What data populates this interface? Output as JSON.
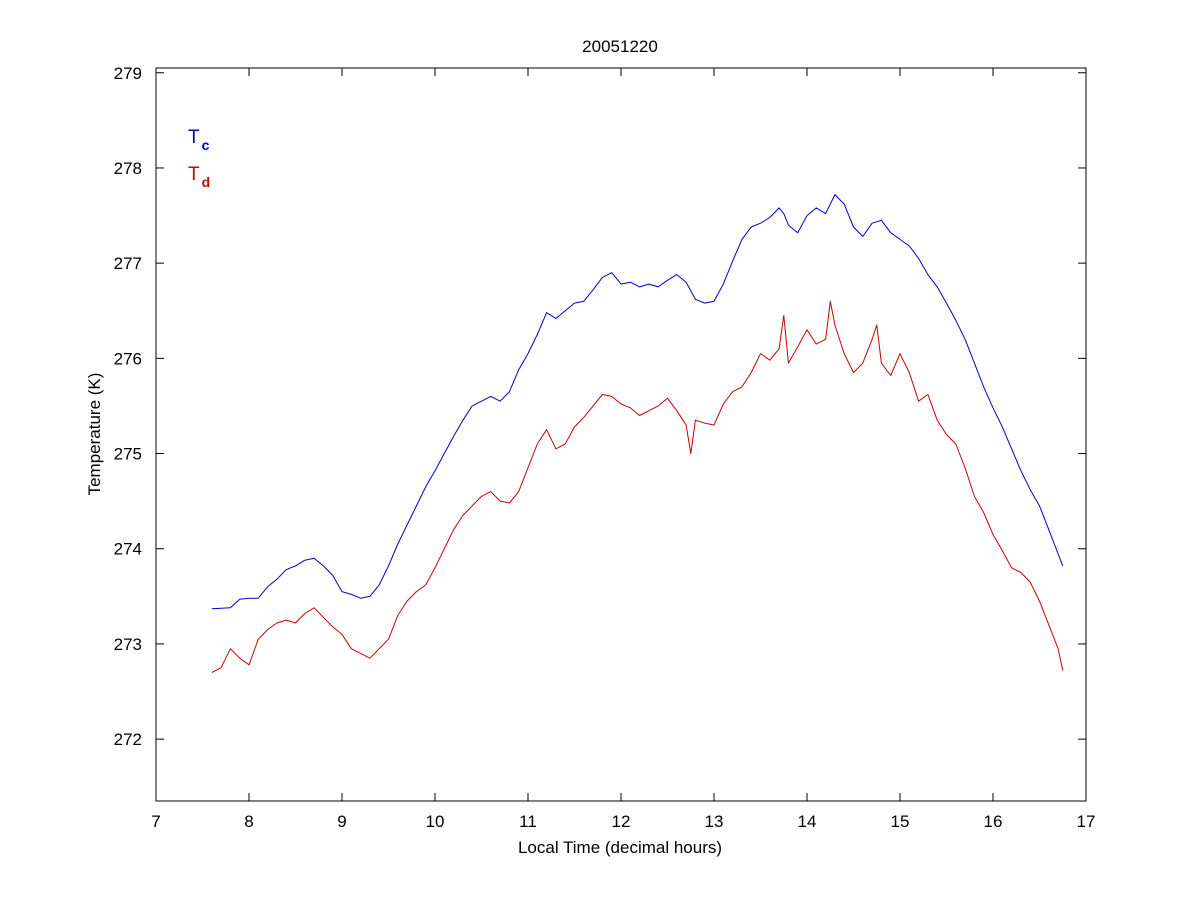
{
  "chart_data": {
    "type": "line",
    "title": "20051220",
    "xlabel": "Local Time (decimal hours)",
    "ylabel": "Temperature (K)",
    "xlim": [
      7,
      17
    ],
    "ylim": [
      271.35,
      279.05
    ],
    "xticks": [
      7,
      8,
      9,
      10,
      11,
      12,
      13,
      14,
      15,
      16,
      17
    ],
    "yticks": [
      272,
      273,
      274,
      275,
      276,
      277,
      278,
      279
    ],
    "grid": false,
    "legend_placement": "top-left",
    "series": [
      {
        "name": "Tc",
        "legend_main": "T",
        "legend_sub": "c",
        "color": "#0000cc",
        "x": [
          7.6,
          7.8,
          7.9,
          8.0,
          8.1,
          8.2,
          8.3,
          8.4,
          8.5,
          8.6,
          8.7,
          8.8,
          8.9,
          9.0,
          9.1,
          9.2,
          9.3,
          9.4,
          9.5,
          9.6,
          9.7,
          9.8,
          9.9,
          10.0,
          10.1,
          10.2,
          10.3,
          10.4,
          10.5,
          10.6,
          10.7,
          10.8,
          10.9,
          11.0,
          11.1,
          11.2,
          11.3,
          11.4,
          11.5,
          11.6,
          11.7,
          11.8,
          11.9,
          12.0,
          12.1,
          12.2,
          12.3,
          12.4,
          12.5,
          12.6,
          12.7,
          12.8,
          12.9,
          13.0,
          13.1,
          13.2,
          13.3,
          13.4,
          13.5,
          13.6,
          13.7,
          13.75,
          13.8,
          13.9,
          14.0,
          14.1,
          14.2,
          14.3,
          14.4,
          14.5,
          14.6,
          14.7,
          14.8,
          14.9,
          15.0,
          15.1,
          15.2,
          15.3,
          15.4,
          15.5,
          15.6,
          15.7,
          15.8,
          15.9,
          16.0,
          16.1,
          16.2,
          16.3,
          16.4,
          16.5,
          16.6,
          16.75
        ],
        "y": [
          273.37,
          273.38,
          273.47,
          273.48,
          273.48,
          273.6,
          273.68,
          273.78,
          273.82,
          273.88,
          273.9,
          273.82,
          273.72,
          273.55,
          273.52,
          273.48,
          273.5,
          273.62,
          273.82,
          274.05,
          274.25,
          274.45,
          274.65,
          274.82,
          275.0,
          275.18,
          275.35,
          275.5,
          275.55,
          275.6,
          275.55,
          275.65,
          275.88,
          276.05,
          276.25,
          276.48,
          276.42,
          276.5,
          276.58,
          276.6,
          276.72,
          276.85,
          276.9,
          276.78,
          276.8,
          276.75,
          276.78,
          276.75,
          276.82,
          276.88,
          276.8,
          276.62,
          276.58,
          276.6,
          276.78,
          277.02,
          277.25,
          277.38,
          277.42,
          277.48,
          277.58,
          277.52,
          277.4,
          277.32,
          277.5,
          277.58,
          277.52,
          277.72,
          277.62,
          277.38,
          277.28,
          277.42,
          277.45,
          277.32,
          277.25,
          277.18,
          277.05,
          276.88,
          276.75,
          276.58,
          276.4,
          276.2,
          275.95,
          275.7,
          275.48,
          275.28,
          275.05,
          274.82,
          274.62,
          274.45,
          274.2,
          273.82
        ]
      },
      {
        "name": "Td",
        "legend_main": "T",
        "legend_sub": "d",
        "color": "#cc0000",
        "x": [
          7.6,
          7.7,
          7.8,
          7.9,
          8.0,
          8.1,
          8.2,
          8.3,
          8.4,
          8.5,
          8.6,
          8.7,
          8.8,
          8.9,
          9.0,
          9.1,
          9.2,
          9.3,
          9.4,
          9.5,
          9.6,
          9.7,
          9.8,
          9.9,
          10.0,
          10.1,
          10.2,
          10.3,
          10.4,
          10.5,
          10.6,
          10.7,
          10.8,
          10.9,
          11.0,
          11.1,
          11.2,
          11.3,
          11.4,
          11.5,
          11.6,
          11.7,
          11.8,
          11.9,
          12.0,
          12.1,
          12.2,
          12.3,
          12.4,
          12.5,
          12.6,
          12.7,
          12.75,
          12.8,
          12.9,
          13.0,
          13.1,
          13.2,
          13.3,
          13.4,
          13.5,
          13.6,
          13.7,
          13.75,
          13.8,
          13.9,
          14.0,
          14.1,
          14.2,
          14.25,
          14.3,
          14.4,
          14.5,
          14.6,
          14.7,
          14.75,
          14.8,
          14.9,
          15.0,
          15.1,
          15.2,
          15.3,
          15.4,
          15.5,
          15.6,
          15.7,
          15.8,
          15.9,
          16.0,
          16.1,
          16.2,
          16.3,
          16.4,
          16.5,
          16.6,
          16.7,
          16.75
        ],
        "y": [
          272.7,
          272.75,
          272.95,
          272.85,
          272.78,
          273.05,
          273.15,
          273.22,
          273.25,
          273.22,
          273.32,
          273.38,
          273.28,
          273.18,
          273.1,
          272.95,
          272.9,
          272.85,
          272.95,
          273.05,
          273.3,
          273.45,
          273.55,
          273.62,
          273.8,
          274.0,
          274.2,
          274.35,
          274.45,
          274.55,
          274.6,
          274.5,
          274.48,
          274.6,
          274.85,
          275.1,
          275.25,
          275.05,
          275.1,
          275.28,
          275.38,
          275.5,
          275.62,
          275.6,
          275.52,
          275.48,
          275.4,
          275.45,
          275.5,
          275.58,
          275.45,
          275.3,
          275.0,
          275.35,
          275.32,
          275.3,
          275.52,
          275.65,
          275.7,
          275.85,
          276.05,
          275.98,
          276.1,
          276.45,
          275.95,
          276.12,
          276.3,
          276.15,
          276.2,
          276.6,
          276.35,
          276.05,
          275.85,
          275.95,
          276.2,
          276.35,
          275.95,
          275.82,
          276.05,
          275.85,
          275.55,
          275.62,
          275.35,
          275.2,
          275.1,
          274.85,
          274.55,
          274.38,
          274.15,
          273.98,
          273.8,
          273.75,
          273.65,
          273.45,
          273.2,
          272.95,
          272.72
        ]
      }
    ]
  }
}
